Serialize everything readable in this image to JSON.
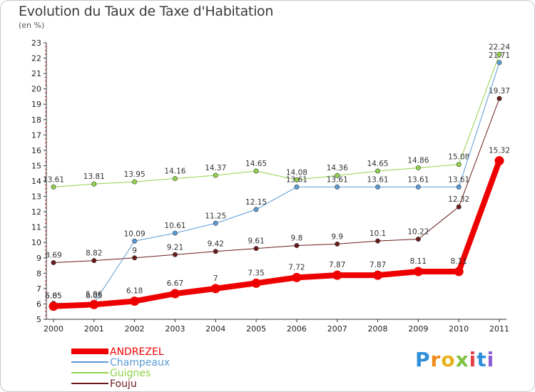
{
  "title": "Evolution du Taux de Taxe d'Habitation",
  "subtitle": "(en %)",
  "logo": {
    "letters": [
      "P",
      "r",
      "o",
      "x",
      "i",
      "t",
      "i"
    ],
    "colors": [
      "#2e8fd6",
      "#f08c1a",
      "#e8b21c",
      "#7fc242",
      "#e14040",
      "#2e8fd6",
      "#8a5bd6"
    ]
  },
  "chart_data": {
    "type": "line",
    "x": [
      "2000",
      "2001",
      "2002",
      "2003",
      "2004",
      "2005",
      "2006",
      "2007",
      "2008",
      "2009",
      "2010",
      "2011"
    ],
    "ylim": [
      5,
      23
    ],
    "yticks": [
      5,
      6,
      7,
      8,
      9,
      10,
      11,
      12,
      13,
      14,
      15,
      16,
      17,
      18,
      19,
      20,
      21,
      22,
      23
    ],
    "grid": false,
    "legend_position": "bottom-left",
    "series": [
      {
        "name": "Fouju",
        "color": "#6b1a1a",
        "width": 1,
        "labels": [
          "8.69",
          "8.82",
          "9",
          "9.21",
          "9.42",
          "9.61",
          "9.8",
          "9.9",
          "10.1",
          "10.22",
          "12.32",
          "19.37"
        ],
        "values": [
          8.69,
          8.82,
          9,
          9.21,
          9.42,
          9.61,
          9.8,
          9.9,
          10.1,
          10.22,
          12.32,
          19.37
        ]
      },
      {
        "name": "Guignes",
        "color": "#8fd24a",
        "width": 1,
        "labels": [
          "13.61",
          "13.81",
          "13.95",
          "14.16",
          "14.37",
          "14.65",
          "14.08",
          "14.36",
          "14.65",
          "14.86",
          "15.08",
          "22.24"
        ],
        "values": [
          13.61,
          13.81,
          13.95,
          14.16,
          14.37,
          14.65,
          14.08,
          14.36,
          14.65,
          14.86,
          15.08,
          22.24
        ]
      },
      {
        "name": "Champeaux",
        "color": "#5a9bd4",
        "width": 1,
        "labels": [
          "6.05",
          "6.05",
          "10.09",
          "10.61",
          "11.25",
          "12.15",
          "13.61",
          "13.61",
          "13.61",
          "13.61",
          "13.61",
          "21.71"
        ],
        "values": [
          6.05,
          6.05,
          10.09,
          10.61,
          11.25,
          12.15,
          13.61,
          13.61,
          13.61,
          13.61,
          13.61,
          21.71
        ]
      },
      {
        "name": "ANDREZEL",
        "color": "#ee0000",
        "width": 8,
        "labels": [
          "5.85",
          "5.96",
          "6.18",
          "6.67",
          "7",
          "7.35",
          "7.72",
          "7.87",
          "7.87",
          "8.11",
          "8.11",
          "15.32"
        ],
        "values": [
          5.85,
          5.96,
          6.18,
          6.67,
          7,
          7.35,
          7.72,
          7.87,
          7.87,
          8.11,
          8.11,
          15.32
        ]
      }
    ],
    "legend_order": [
      "ANDREZEL",
      "Champeaux",
      "Guignes",
      "Fouju"
    ]
  }
}
